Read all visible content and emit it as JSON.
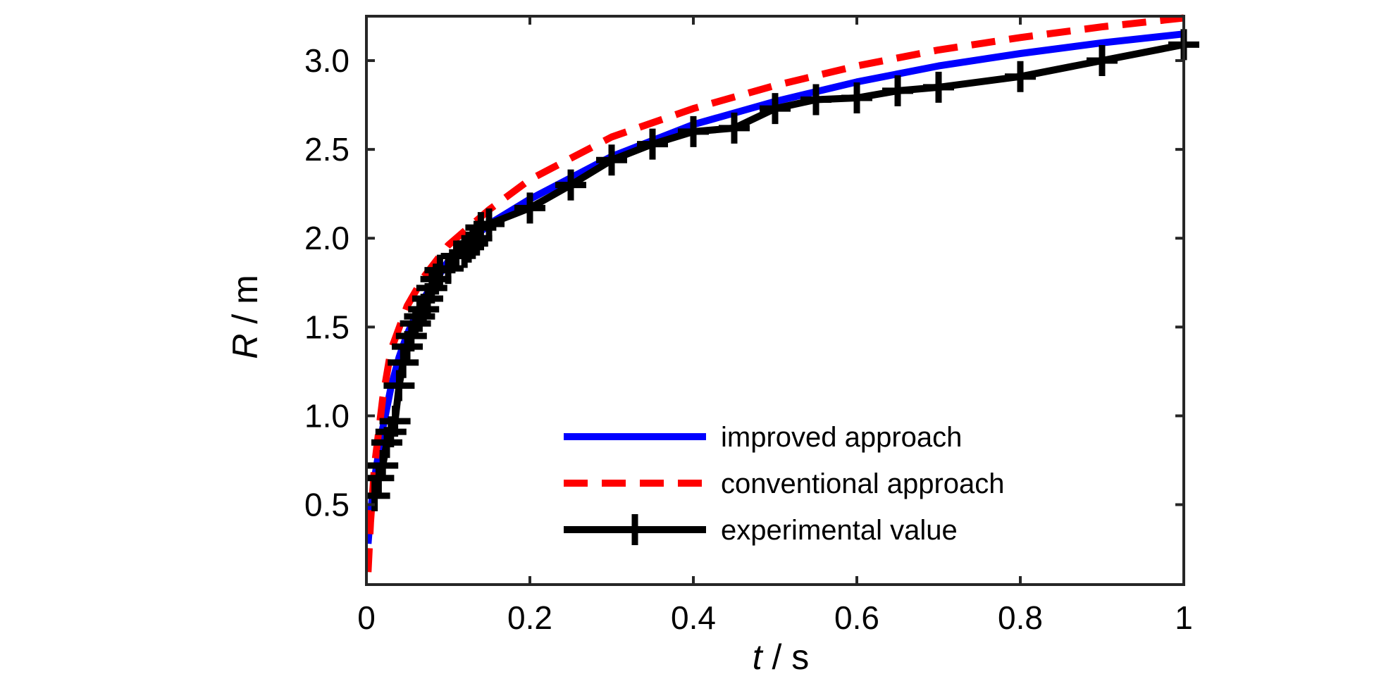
{
  "chart_data": {
    "type": "line",
    "xlabel_var": "t",
    "xlabel_unit": " / s",
    "ylabel_var": "R",
    "ylabel_unit": " / m",
    "xlim": [
      0,
      1
    ],
    "ylim": [
      0.05,
      3.25
    ],
    "xticks": [
      0,
      0.2,
      0.4,
      0.6,
      0.8,
      1
    ],
    "xtick_labels": [
      "0",
      "0.2",
      "0.4",
      "0.6",
      "0.8",
      "1"
    ],
    "yticks": [
      0.5,
      1.0,
      1.5,
      2.0,
      2.5,
      3.0
    ],
    "ytick_labels": [
      "0.5",
      "1.0",
      "1.5",
      "2.0",
      "2.5",
      "3.0"
    ],
    "grid": false,
    "legend_position": "lower-right",
    "series": [
      {
        "name": "improved approach",
        "color": "#0000ff",
        "style": "solid",
        "marker": "none",
        "x": [
          0.002,
          0.005,
          0.01,
          0.02,
          0.03,
          0.04,
          0.05,
          0.07,
          0.1,
          0.15,
          0.2,
          0.3,
          0.4,
          0.5,
          0.6,
          0.7,
          0.8,
          0.9,
          1.0
        ],
        "y": [
          0.28,
          0.45,
          0.65,
          0.93,
          1.16,
          1.33,
          1.46,
          1.66,
          1.87,
          2.08,
          2.22,
          2.46,
          2.64,
          2.77,
          2.88,
          2.97,
          3.04,
          3.1,
          3.15
        ]
      },
      {
        "name": "conventional approach",
        "color": "#ff0000",
        "style": "dashed",
        "marker": "none",
        "x": [
          0.002,
          0.005,
          0.01,
          0.02,
          0.03,
          0.05,
          0.07,
          0.1,
          0.15,
          0.2,
          0.3,
          0.4,
          0.5,
          0.6,
          0.7,
          0.8,
          0.9,
          1.0
        ],
        "y": [
          0.12,
          0.4,
          0.72,
          1.1,
          1.37,
          1.62,
          1.78,
          1.96,
          2.16,
          2.33,
          2.57,
          2.73,
          2.86,
          2.97,
          3.06,
          3.13,
          3.19,
          3.24
        ]
      },
      {
        "name": "experimental value",
        "color": "#000000",
        "style": "solid",
        "marker": "plus",
        "x": [
          0.01,
          0.015,
          0.02,
          0.025,
          0.03,
          0.035,
          0.04,
          0.045,
          0.05,
          0.055,
          0.06,
          0.065,
          0.07,
          0.075,
          0.08,
          0.085,
          0.09,
          0.1,
          0.11,
          0.12,
          0.125,
          0.13,
          0.135,
          0.14,
          0.15,
          0.2,
          0.25,
          0.3,
          0.35,
          0.4,
          0.45,
          0.5,
          0.55,
          0.6,
          0.65,
          0.7,
          0.8,
          0.9,
          1.0
        ],
        "y": [
          0.55,
          0.65,
          0.72,
          0.85,
          0.91,
          0.97,
          1.17,
          1.3,
          1.39,
          1.45,
          1.52,
          1.56,
          1.6,
          1.66,
          1.72,
          1.77,
          1.82,
          1.83,
          1.9,
          1.92,
          1.95,
          1.97,
          2.0,
          2.06,
          2.08,
          2.17,
          2.3,
          2.44,
          2.53,
          2.6,
          2.62,
          2.73,
          2.78,
          2.79,
          2.83,
          2.85,
          2.91,
          3.0,
          3.09
        ]
      }
    ]
  }
}
